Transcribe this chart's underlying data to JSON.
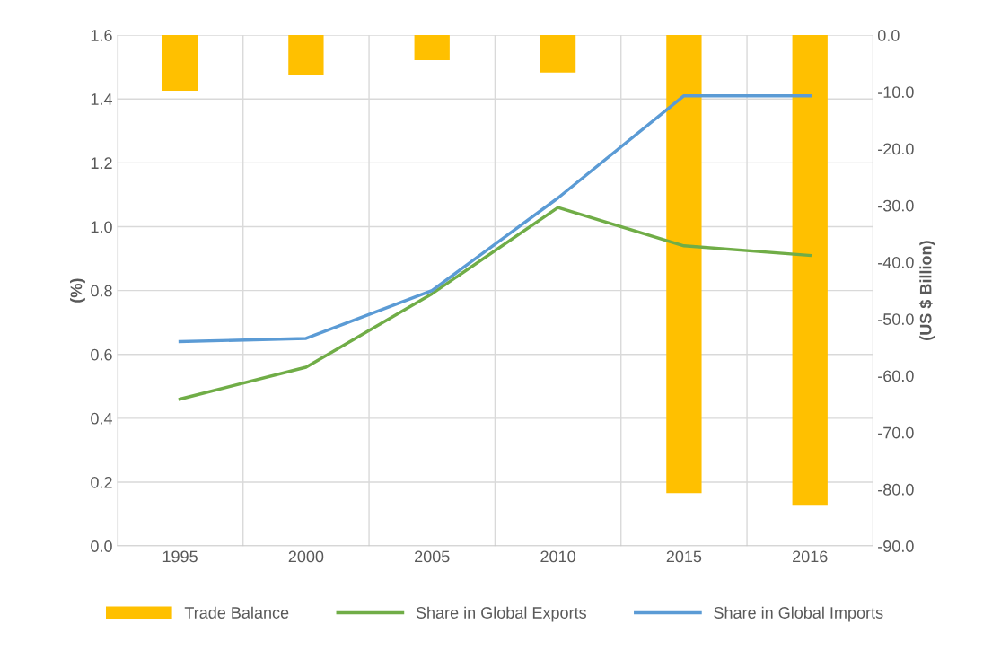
{
  "chart_data": {
    "type": "line",
    "ylabel": "(%)",
    "y2label": "(US $ Billion)",
    "categories": [
      "1995",
      "2000",
      "2005",
      "2010",
      "2015",
      "2016"
    ],
    "series": [
      {
        "name": "Trade Balance",
        "type": "bar",
        "axis": "y2",
        "color": "#ffc000",
        "values": [
          -9.8,
          -7.0,
          -4.4,
          -6.6,
          -80.7,
          -82.9
        ]
      },
      {
        "name": "Share in Global Exports",
        "color": "#70ad47",
        "values": [
          0.46,
          0.56,
          0.79,
          1.06,
          0.94,
          0.91
        ]
      },
      {
        "name": "Share in Global Imports",
        "color": "#5b9bd5",
        "values": [
          0.64,
          0.65,
          0.8,
          1.09,
          1.41,
          1.41
        ]
      }
    ],
    "ylim": [
      0,
      1.6
    ],
    "yticks": [
      {
        "value": 0,
        "label": "0.0"
      },
      {
        "value": 0.2,
        "label": "0.2"
      },
      {
        "value": 0.4,
        "label": "0.4"
      },
      {
        "value": 0.6,
        "label": "0.6"
      },
      {
        "value": 0.8,
        "label": "0.8"
      },
      {
        "value": 1.0,
        "label": "1.0"
      },
      {
        "value": 1.2,
        "label": "1.2"
      },
      {
        "value": 1.4,
        "label": "1.4"
      },
      {
        "value": 1.6,
        "label": "1.6"
      }
    ],
    "y2lim": [
      -90,
      0
    ],
    "y2ticks": [
      {
        "value": -90,
        "label": "-90.0"
      },
      {
        "value": -80,
        "label": "-80.0"
      },
      {
        "value": -70,
        "label": "-70.0"
      },
      {
        "value": -60,
        "label": "-60.0"
      },
      {
        "value": -50,
        "label": "-50.0"
      },
      {
        "value": -40,
        "label": "-40.0"
      },
      {
        "value": -30,
        "label": "-30.0"
      },
      {
        "value": -20,
        "label": "-20.0"
      },
      {
        "value": -10,
        "label": "-10.0"
      },
      {
        "value": 0,
        "label": "0.0"
      }
    ],
    "grid": true,
    "legend": "bottom",
    "marker": "none",
    "line_style": "solid"
  }
}
